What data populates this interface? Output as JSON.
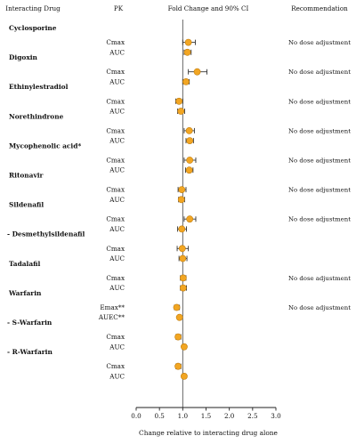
{
  "headers": {
    "drug": "Interacting Drug",
    "pk": "PK",
    "ci": "Fold Change and 90% CI",
    "recommendation": "Recommendation"
  },
  "chart_data": {
    "type": "scatter",
    "subtype": "forest-plot",
    "xlabel": "Change relative to interacting drug alone",
    "xlim": [
      0.0,
      3.0
    ],
    "xticks": [
      "0.0",
      "0.5",
      "1.0",
      "1.5",
      "2.0",
      "2.5",
      "3.0"
    ],
    "reference_line": 1.0,
    "marker_color": "#f2a623",
    "marker_edge_color": "#c07d10",
    "groups": [
      {
        "drug": "Cyclosporine",
        "recommendation": "No dose adjustment",
        "rows": [
          {
            "pk": "Cmax",
            "estimate": 1.12,
            "lower": 1.0,
            "upper": 1.27
          },
          {
            "pk": "AUC",
            "estimate": 1.1,
            "lower": 1.03,
            "upper": 1.18
          }
        ]
      },
      {
        "drug": "Digoxin",
        "recommendation": "No dose adjustment",
        "rows": [
          {
            "pk": "Cmax",
            "estimate": 1.31,
            "lower": 1.12,
            "upper": 1.52
          },
          {
            "pk": "AUC",
            "estimate": 1.07,
            "lower": 1.0,
            "upper": 1.14
          }
        ]
      },
      {
        "drug": "Ethinylestradiol",
        "recommendation": "No dose adjustment",
        "rows": [
          {
            "pk": "Cmax",
            "estimate": 0.92,
            "lower": 0.85,
            "upper": 1.0
          },
          {
            "pk": "AUC",
            "estimate": 0.96,
            "lower": 0.89,
            "upper": 1.04
          }
        ]
      },
      {
        "drug": "Norethindrone",
        "recommendation": "No dose adjustment",
        "rows": [
          {
            "pk": "Cmax",
            "estimate": 1.14,
            "lower": 1.03,
            "upper": 1.25
          },
          {
            "pk": "AUC",
            "estimate": 1.15,
            "lower": 1.07,
            "upper": 1.23
          }
        ]
      },
      {
        "drug": "Mycophenolic acid*",
        "recommendation": "No dose adjustment",
        "rows": [
          {
            "pk": "Cmax",
            "estimate": 1.15,
            "lower": 1.03,
            "upper": 1.28
          },
          {
            "pk": "AUC",
            "estimate": 1.14,
            "lower": 1.06,
            "upper": 1.22
          }
        ]
      },
      {
        "drug": "Ritonavir",
        "recommendation": "No dose adjustment",
        "rows": [
          {
            "pk": "Cmax",
            "estimate": 0.98,
            "lower": 0.9,
            "upper": 1.07
          },
          {
            "pk": "AUC",
            "estimate": 0.97,
            "lower": 0.91,
            "upper": 1.04
          }
        ]
      },
      {
        "drug": "Sildenafil",
        "recommendation": "No dose adjustment",
        "rows": [
          {
            "pk": "Cmax",
            "estimate": 1.15,
            "lower": 1.03,
            "upper": 1.28
          },
          {
            "pk": "AUC",
            "estimate": 0.98,
            "lower": 0.89,
            "upper": 1.08
          }
        ]
      },
      {
        "drug": "- Desmethylsildenafil",
        "recommendation": "",
        "rows": [
          {
            "pk": "Cmax",
            "estimate": 0.99,
            "lower": 0.88,
            "upper": 1.12
          },
          {
            "pk": "AUC",
            "estimate": 1.0,
            "lower": 0.92,
            "upper": 1.09
          }
        ]
      },
      {
        "drug": "Tadalafil",
        "recommendation": "No dose adjustment",
        "rows": [
          {
            "pk": "Cmax",
            "estimate": 1.01,
            "lower": 0.95,
            "upper": 1.07
          },
          {
            "pk": "AUC",
            "estimate": 1.01,
            "lower": 0.95,
            "upper": 1.08
          }
        ]
      },
      {
        "drug": "Warfarin",
        "recommendation": "No dose adjustment",
        "rows": [
          {
            "pk": "Emax**",
            "estimate": 0.87,
            "lower": 0.82,
            "upper": 0.93
          },
          {
            "pk": "AUEC**",
            "estimate": 0.93,
            "lower": 0.9,
            "upper": 0.96
          }
        ]
      },
      {
        "drug": "- S-Warfarin",
        "recommendation": "",
        "rows": [
          {
            "pk": "Cmax",
            "estimate": 0.9,
            "lower": 0.85,
            "upper": 0.96
          },
          {
            "pk": "AUC",
            "estimate": 1.03,
            "lower": 0.99,
            "upper": 1.07
          }
        ]
      },
      {
        "drug": "- R-Warfarin",
        "recommendation": "",
        "rows": [
          {
            "pk": "Cmax",
            "estimate": 0.9,
            "lower": 0.85,
            "upper": 0.96
          },
          {
            "pk": "AUC",
            "estimate": 1.03,
            "lower": 0.99,
            "upper": 1.07
          }
        ]
      }
    ]
  }
}
